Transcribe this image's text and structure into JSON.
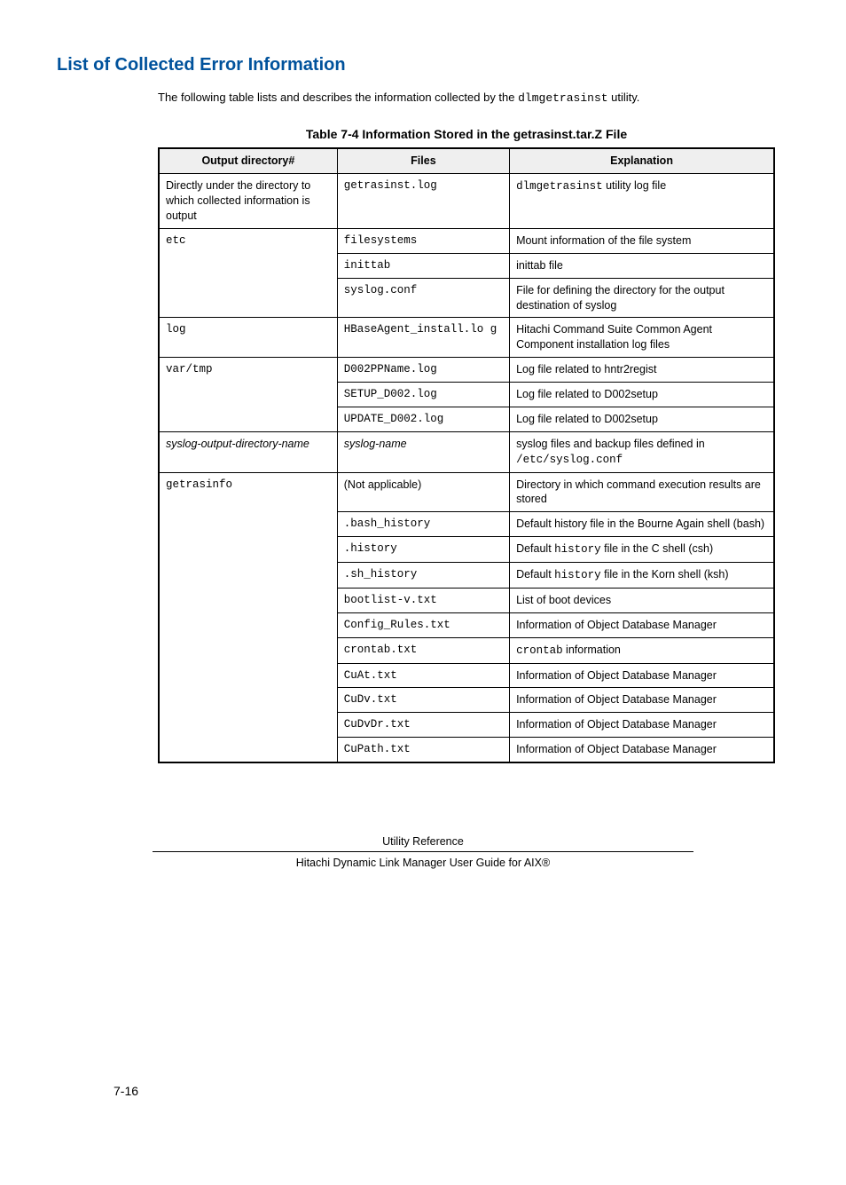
{
  "heading": "List of Collected Error Information",
  "intro_1": "The following table lists and describes the information collected by the ",
  "intro_code": "dlmgetrasinst",
  "intro_2": " utility.",
  "table_title": "Table 7-4 Information Stored in the getrasinst.tar.Z File",
  "headers": {
    "c1": "Output directory#",
    "c2": "Files",
    "c3": "Explanation"
  },
  "rows": [
    {
      "dir_span": 1,
      "dir": {
        "text": "Directly under the directory to which collected information is output"
      },
      "file": {
        "text": "getrasinst.log",
        "mono": true
      },
      "exp": {
        "parts": [
          {
            "t": "dlmgetrasinst",
            "mono": true
          },
          {
            "t": " utility log file"
          }
        ]
      }
    },
    {
      "dir_span": 3,
      "dir": {
        "text": "etc",
        "mono": true
      },
      "file": {
        "text": "filesystems",
        "mono": true
      },
      "exp": {
        "parts": [
          {
            "t": "Mount information of the file system"
          }
        ]
      }
    },
    {
      "file": {
        "text": "inittab",
        "mono": true
      },
      "exp": {
        "parts": [
          {
            "t": "inittab file"
          }
        ]
      }
    },
    {
      "file": {
        "text": "syslog.conf",
        "mono": true
      },
      "exp": {
        "parts": [
          {
            "t": "File for defining the directory for the output destination of syslog"
          }
        ]
      }
    },
    {
      "dir_span": 1,
      "dir": {
        "text": "log",
        "mono": true
      },
      "file": {
        "text": "HBaseAgent_install.lo\ng",
        "mono": true
      },
      "exp": {
        "parts": [
          {
            "t": "Hitachi Command Suite Common Agent Component installation log files"
          }
        ]
      }
    },
    {
      "dir_span": 3,
      "dir": {
        "text": "var/tmp",
        "mono": true
      },
      "file": {
        "text": "D002PPName.log",
        "mono": true
      },
      "exp": {
        "parts": [
          {
            "t": "Log file related to hntr2regist"
          }
        ]
      }
    },
    {
      "file": {
        "text": "SETUP_D002.log",
        "mono": true
      },
      "exp": {
        "parts": [
          {
            "t": "Log file related to D002setup"
          }
        ]
      }
    },
    {
      "file": {
        "text": "UPDATE_D002.log",
        "mono": true
      },
      "exp": {
        "parts": [
          {
            "t": "Log file related to D002setup"
          }
        ]
      }
    },
    {
      "dir_span": 1,
      "dir": {
        "text": "syslog-output-directory-name",
        "italic": true
      },
      "file": {
        "text": "syslog-name",
        "italic": true
      },
      "exp": {
        "parts": [
          {
            "t": "syslog files and backup files defined in "
          },
          {
            "t": "/etc/syslog.conf",
            "mono": true
          }
        ]
      }
    },
    {
      "dir_span": 11,
      "dir": {
        "text": "getrasinfo",
        "mono": true
      },
      "file": {
        "text": "(Not applicable)"
      },
      "exp": {
        "parts": [
          {
            "t": "Directory in which command execution results are stored"
          }
        ]
      }
    },
    {
      "file": {
        "text": ".bash_history",
        "mono": true
      },
      "exp": {
        "parts": [
          {
            "t": "Default history file in the Bourne Again shell (bash)"
          }
        ]
      }
    },
    {
      "file": {
        "text": ".history",
        "mono": true
      },
      "exp": {
        "parts": [
          {
            "t": "Default "
          },
          {
            "t": "history",
            "mono": true
          },
          {
            "t": " file in the C shell (csh)"
          }
        ]
      }
    },
    {
      "file": {
        "text": ".sh_history",
        "mono": true
      },
      "exp": {
        "parts": [
          {
            "t": "Default "
          },
          {
            "t": "history",
            "mono": true
          },
          {
            "t": " file in the Korn shell (ksh)"
          }
        ]
      }
    },
    {
      "file": {
        "text": "bootlist-v.txt",
        "mono": true
      },
      "exp": {
        "parts": [
          {
            "t": "List of boot devices"
          }
        ]
      }
    },
    {
      "file": {
        "text": "Config_Rules.txt",
        "mono": true
      },
      "exp": {
        "parts": [
          {
            "t": "Information of Object Database Manager"
          }
        ]
      }
    },
    {
      "file": {
        "text": "crontab.txt",
        "mono": true
      },
      "exp": {
        "parts": [
          {
            "t": "crontab",
            "mono": true
          },
          {
            "t": " information"
          }
        ]
      }
    },
    {
      "file": {
        "text": "CuAt.txt",
        "mono": true
      },
      "exp": {
        "parts": [
          {
            "t": "Information of Object Database Manager"
          }
        ]
      }
    },
    {
      "file": {
        "text": "CuDv.txt",
        "mono": true
      },
      "exp": {
        "parts": [
          {
            "t": "Information of Object Database Manager"
          }
        ]
      }
    },
    {
      "file": {
        "text": "CuDvDr.txt",
        "mono": true
      },
      "exp": {
        "parts": [
          {
            "t": "Information of Object Database Manager"
          }
        ]
      }
    },
    {
      "file": {
        "text": "CuPath.txt",
        "mono": true
      },
      "exp": {
        "parts": [
          {
            "t": "Information of Object Database Manager"
          }
        ]
      }
    }
  ],
  "footer": {
    "page": "7-16",
    "section": "Utility Reference",
    "guide": "Hitachi Dynamic Link Manager User Guide for AIX®"
  }
}
